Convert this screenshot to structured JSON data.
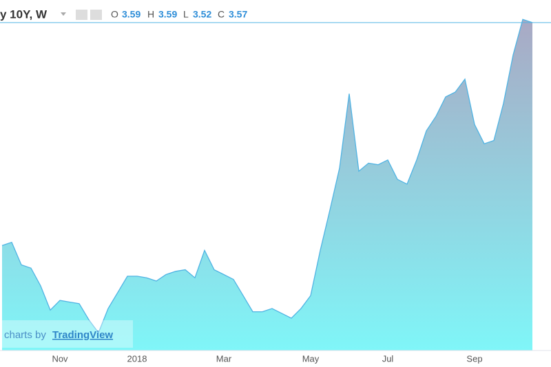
{
  "chart_data": {
    "type": "area",
    "title": "y 10Y, W",
    "ohlc": {
      "open_label": "O",
      "open": 3.59,
      "high_label": "H",
      "high": 3.59,
      "low_label": "L",
      "low": 3.52,
      "close_label": "C",
      "close": 3.57
    },
    "categories": [
      null,
      null,
      null,
      null,
      null,
      null,
      "Nov",
      null,
      null,
      null,
      null,
      null,
      null,
      null,
      "2018",
      null,
      null,
      null,
      null,
      null,
      null,
      null,
      null,
      "Mar",
      null,
      null,
      null,
      null,
      null,
      null,
      null,
      null,
      "May",
      null,
      null,
      null,
      null,
      null,
      null,
      null,
      "Jul",
      null,
      null,
      null,
      null,
      null,
      null,
      null,
      null,
      "Sep",
      null,
      null,
      null,
      null,
      null,
      null
    ],
    "values": [
      2.19,
      2.21,
      2.07,
      2.05,
      1.94,
      1.79,
      1.85,
      1.84,
      1.83,
      1.73,
      1.65,
      1.8,
      1.9,
      2.0,
      2.0,
      1.99,
      1.97,
      2.01,
      2.03,
      2.04,
      1.99,
      2.16,
      2.04,
      2.01,
      1.98,
      1.88,
      1.78,
      1.78,
      1.8,
      1.77,
      1.74,
      1.8,
      1.88,
      2.16,
      2.41,
      2.67,
      3.13,
      2.65,
      2.7,
      2.69,
      2.72,
      2.6,
      2.57,
      2.72,
      2.9,
      2.99,
      3.11,
      3.14,
      3.22,
      2.94,
      2.82,
      2.84,
      3.07,
      3.37,
      3.59,
      3.57
    ],
    "ylim": [
      1.54,
      3.71
    ],
    "line_color": "#4fb3e3",
    "fill_top": "#a9a9c4",
    "fill_bottom": "#7ff6f8",
    "watermark": {
      "prefix": "charts by",
      "brand": "TradingView"
    }
  }
}
